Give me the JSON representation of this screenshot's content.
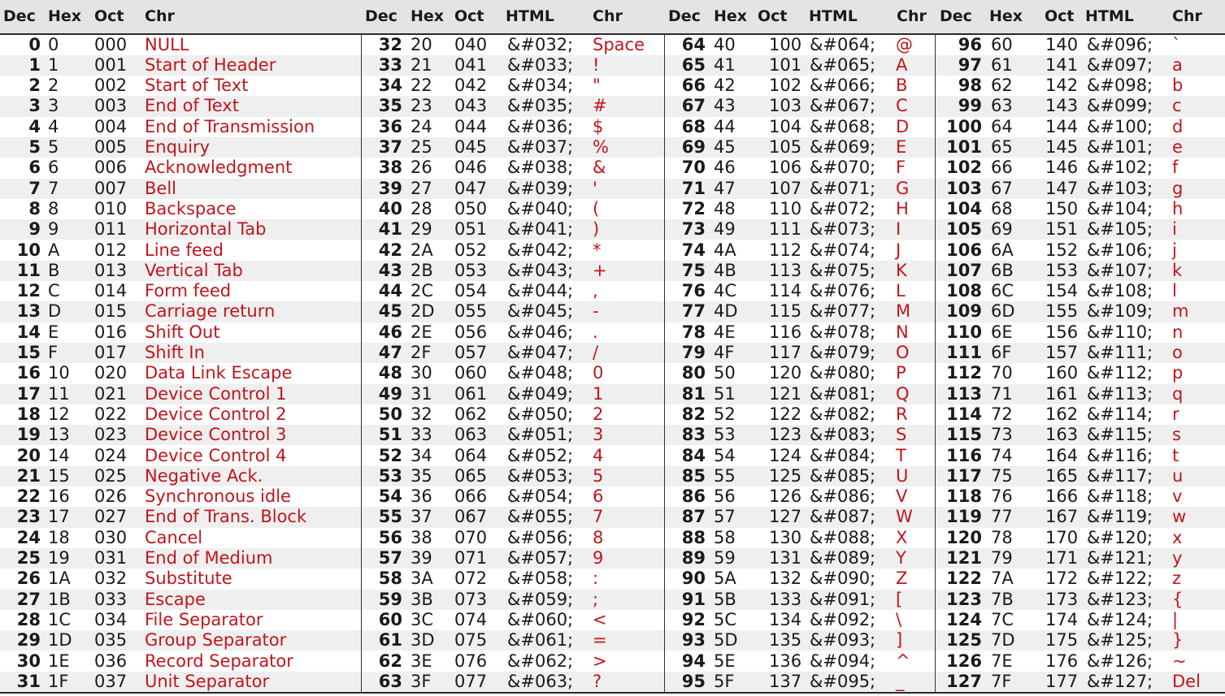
{
  "headers": [
    [
      "Dec",
      "Hex",
      "Oct",
      "Chr"
    ],
    [
      "Dec",
      "Hex",
      "Oct",
      "HTML",
      "Chr"
    ],
    [
      "Dec",
      "Hex",
      "Oct",
      "HTML",
      "Chr"
    ],
    [
      "Dec",
      "Hex",
      "Oct",
      "HTML",
      "Chr"
    ]
  ],
  "control_names": [
    "NULL",
    "Start of Header",
    "Start of Text",
    "End of Text",
    "End of Transmission",
    "Enquiry",
    "Acknowledgment",
    "Bell",
    "Backspace",
    "Horizontal Tab",
    "Line feed",
    "Vertical Tab",
    "Form feed",
    "Carriage return",
    "Shift Out",
    "Shift In",
    "Data Link Escape",
    "Device Control 1",
    "Device Control 2",
    "Device Control 3",
    "Device Control 4",
    "Negative Ack.",
    "Synchronous idle",
    "End of Trans. Block",
    "Cancel",
    "End of Medium",
    "Substitute",
    "Escape",
    "File Separator",
    "Group Separator",
    "Record Separator",
    "Unit Separator"
  ],
  "chr_group2": [
    "Space",
    "!",
    "\"",
    "#",
    "$",
    "%",
    "&",
    "'",
    "(",
    ")",
    "*",
    "+",
    ",",
    "-",
    ".",
    "/",
    "0",
    "1",
    "2",
    "3",
    "4",
    "5",
    "6",
    "7",
    "8",
    "9",
    ":",
    ";",
    "<",
    "=",
    ">",
    "?"
  ],
  "chr_group3": [
    "@",
    "A",
    "B",
    "C",
    "D",
    "E",
    "F",
    "G",
    "H",
    "I",
    "J",
    "K",
    "L",
    "M",
    "N",
    "O",
    "P",
    "Q",
    "R",
    "S",
    "T",
    "U",
    "V",
    "W",
    "X",
    "Y",
    "Z",
    "[",
    "\\",
    "]",
    "^",
    "_"
  ],
  "chr_group4": [
    "`",
    "a",
    "b",
    "c",
    "d",
    "e",
    "f",
    "g",
    "h",
    "i",
    "j",
    "k",
    "l",
    "m",
    "n",
    "o",
    "p",
    "q",
    "r",
    "s",
    "t",
    "u",
    "v",
    "w",
    "x",
    "y",
    "z",
    "{",
    "|",
    "}",
    "~",
    "Del"
  ]
}
